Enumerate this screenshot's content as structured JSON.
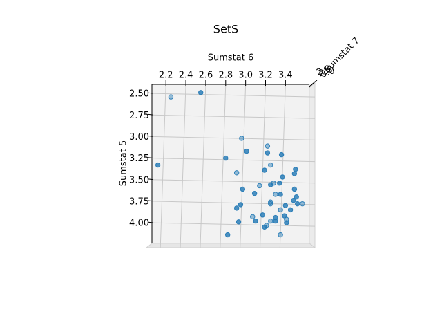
{
  "chart_data": {
    "type": "scatter3d",
    "title": "SetS",
    "xlabel": "Sumstat 6",
    "ylabel": "Sumstat 5",
    "zlabel": "Sumstat 7",
    "color": "#1f77b4",
    "grid": true,
    "yinverted": true,
    "xlim": [
      2.06,
      3.64
    ],
    "ylim": [
      2.395,
      4.24
    ],
    "xticks": [
      2.2,
      2.4,
      2.6,
      2.8,
      {
        "value": 3,
        "label": "3.0"
      },
      3.2,
      3.4
    ],
    "yticks": [
      {
        "value": 2.5,
        "label": "2.50"
      },
      2.75,
      {
        "value": 3,
        "label": "3.00"
      },
      3.25,
      {
        "value": 3.5,
        "label": "3.50"
      },
      3.75,
      {
        "value": 4,
        "label": "4.00"
      }
    ],
    "zticks": [
      {
        "value": 2,
        "label": "2.0"
      },
      2.5,
      {
        "value": 3,
        "label": "3.0"
      }
    ],
    "x": [
      2.25,
      2.55,
      2.12,
      2.96,
      3.01,
      2.8,
      3.22,
      3.22,
      3.36,
      3.25,
      3.19,
      3.5,
      2.91,
      3.49,
      3.37,
      3.14,
      2.97,
      3.25,
      3.28,
      3.09,
      3.34,
      3.3,
      3.35,
      3.49,
      3.25,
      3.51,
      3.48,
      3.25,
      3.4,
      3.52,
      3.57,
      2.95,
      2.91,
      3.35,
      3.45,
      3.17,
      3.07,
      3.39,
      3.3,
      3.41,
      2.93,
      3.1,
      3.25,
      3.3,
      3.41,
      3.21,
      3.19,
      2.82,
      3.35
    ],
    "values": [
      2.54,
      2.49,
      3.33,
      3.02,
      3.17,
      3.25,
      3.11,
      3.19,
      3.21,
      3.33,
      3.39,
      3.38,
      3.42,
      3.43,
      3.47,
      3.57,
      3.61,
      3.56,
      3.54,
      3.66,
      3.54,
      3.67,
      3.67,
      3.61,
      3.76,
      3.7,
      3.74,
      3.78,
      3.8,
      3.78,
      3.78,
      3.79,
      3.83,
      3.85,
      3.85,
      3.91,
      3.93,
      3.92,
      3.94,
      3.96,
      3.99,
      3.98,
      3.98,
      3.98,
      4.0,
      4.03,
      4.05,
      4.14,
      4.14
    ]
  }
}
